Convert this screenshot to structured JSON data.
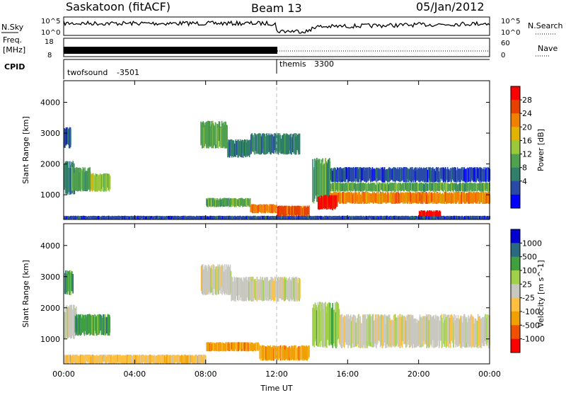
{
  "header": {
    "station": "Saskatoon (fitACF)",
    "beam": "Beam 13",
    "date": "05/Jan/2012"
  },
  "noise_panel": {
    "left_label": "N.Sky",
    "right_label": "N.Search",
    "left_ticks": [
      "10^5",
      "10^0"
    ],
    "right_ticks": [
      "10^5",
      "10^0"
    ]
  },
  "freq_panel": {
    "left_label_top": "Freq.",
    "left_label_unit": "[MHz]",
    "left_ticks": [
      "18",
      "8"
    ],
    "right_label": "Nave",
    "right_ticks": [
      "60",
      "0"
    ]
  },
  "cpid_panel": {
    "label": "CPID",
    "modes": [
      {
        "name": "twofsound",
        "id": "-3501",
        "start_hour": 0.0
      },
      {
        "name": "themis",
        "id": "3300",
        "start_hour": 12.0
      }
    ]
  },
  "chart_data": [
    {
      "type": "heatmap",
      "name": "power",
      "ylabel": "Slant Range [km]",
      "yticks": [
        1000,
        2000,
        3000,
        4000
      ],
      "ylim": [
        200,
        4700
      ],
      "xlim": [
        0,
        24
      ],
      "colorbar": {
        "label": "Power [dB]",
        "ticks": [
          "28",
          "24",
          "20",
          "16",
          "12",
          "8",
          "4"
        ],
        "colors": [
          "#0000ff",
          "#2a4aa8",
          "#2f7f6a",
          "#4fa04f",
          "#9ac83a",
          "#e2b400",
          "#f08000",
          "#e84000",
          "#ff0000"
        ]
      },
      "regions": [
        {
          "h0": 0.0,
          "h1": 0.4,
          "r0": 2500,
          "r1": 3200,
          "level": 1
        },
        {
          "h0": 0.0,
          "h1": 0.6,
          "r0": 1000,
          "r1": 2100,
          "level": 2
        },
        {
          "h0": 0.4,
          "h1": 1.5,
          "r0": 1100,
          "r1": 1900,
          "level": 3
        },
        {
          "h0": 1.5,
          "h1": 2.6,
          "r0": 1100,
          "r1": 1700,
          "level": 4
        },
        {
          "h0": 7.7,
          "h1": 9.2,
          "r0": 2500,
          "r1": 3400,
          "level": 3
        },
        {
          "h0": 9.2,
          "h1": 10.5,
          "r0": 2200,
          "r1": 2800,
          "level": 2
        },
        {
          "h0": 10.5,
          "h1": 13.3,
          "r0": 2300,
          "r1": 3000,
          "level": 2
        },
        {
          "h0": 8.0,
          "h1": 10.5,
          "r0": 600,
          "r1": 900,
          "level": 3
        },
        {
          "h0": 10.5,
          "h1": 12.0,
          "r0": 400,
          "r1": 700,
          "level": 6
        },
        {
          "h0": 12.0,
          "h1": 13.8,
          "r0": 300,
          "r1": 650,
          "level": 7
        },
        {
          "h0": 14.0,
          "h1": 15.0,
          "r0": 700,
          "r1": 2200,
          "level": 3
        },
        {
          "h0": 15.0,
          "h1": 24.0,
          "r0": 1400,
          "r1": 1900,
          "level": 1
        },
        {
          "h0": 15.0,
          "h1": 24.0,
          "r0": 1100,
          "r1": 1400,
          "level": 3
        },
        {
          "h0": 15.0,
          "h1": 24.0,
          "r0": 700,
          "r1": 1100,
          "level": 6
        },
        {
          "h0": 14.3,
          "h1": 15.4,
          "r0": 500,
          "r1": 1000,
          "level": 8
        },
        {
          "h0": 20.0,
          "h1": 21.2,
          "r0": 250,
          "r1": 500,
          "level": 8
        },
        {
          "h0": 0.0,
          "h1": 24.0,
          "r0": 200,
          "r1": 320,
          "level": 1
        }
      ]
    },
    {
      "type": "heatmap",
      "name": "velocity",
      "ylabel": "Slant Range [km]",
      "yticks": [
        1000,
        2000,
        3000,
        4000
      ],
      "ylim": [
        200,
        4700
      ],
      "xlim": [
        0,
        24
      ],
      "colorbar": {
        "label": "Velocity [m s^-1]",
        "ticks": [
          "1000",
          "500",
          "100",
          "25",
          "-25",
          "-100",
          "-500",
          "-1000"
        ],
        "colors": [
          "#ff0000",
          "#f05000",
          "#f0a000",
          "#ffc040",
          "#c8c8c0",
          "#a0d048",
          "#3fa03f",
          "#2a6a80",
          "#0000d0"
        ]
      },
      "regions": [
        {
          "h0": 0.0,
          "h1": 0.5,
          "r0": 2400,
          "r1": 3200,
          "level": 6
        },
        {
          "h0": 0.0,
          "h1": 0.7,
          "r0": 1000,
          "r1": 2100,
          "level": 4
        },
        {
          "h0": 0.6,
          "h1": 2.6,
          "r0": 1100,
          "r1": 1800,
          "level": 6
        },
        {
          "h0": 7.7,
          "h1": 9.4,
          "r0": 2400,
          "r1": 3400,
          "level": 4
        },
        {
          "h0": 9.4,
          "h1": 13.3,
          "r0": 2200,
          "r1": 3000,
          "level": 4
        },
        {
          "h0": 8.0,
          "h1": 11.0,
          "r0": 600,
          "r1": 900,
          "level": 2
        },
        {
          "h0": 11.0,
          "h1": 13.8,
          "r0": 300,
          "r1": 800,
          "level": 2
        },
        {
          "h0": 14.0,
          "h1": 15.5,
          "r0": 700,
          "r1": 2200,
          "level": 5
        },
        {
          "h0": 15.5,
          "h1": 24.0,
          "r0": 700,
          "r1": 1800,
          "level": 4
        },
        {
          "h0": 0.0,
          "h1": 8.0,
          "r0": 200,
          "r1": 500,
          "level": 3
        }
      ]
    }
  ],
  "xaxis": {
    "label": "Time UT",
    "ticks": [
      "00:00",
      "04:00",
      "08:00",
      "12:00",
      "16:00",
      "20:00",
      "00:00"
    ]
  }
}
